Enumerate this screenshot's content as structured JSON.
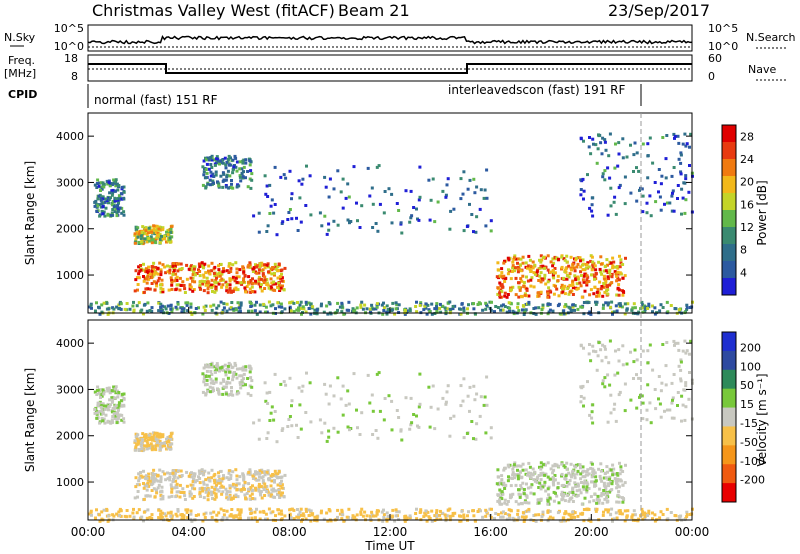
{
  "header": {
    "title": "Christmas Valley West (fitACF)",
    "beam": "Beam 21",
    "date": "23/Sep/2017"
  },
  "panels": {
    "nsky": {
      "label": "N.Sky",
      "right_label": "N.Search",
      "ticks_left": [
        "10^5",
        "10^0"
      ],
      "ticks_right": [
        "10^5",
        "10^0"
      ]
    },
    "freq": {
      "label_1": "Freq.",
      "label_2": "[MHz]",
      "right_label": "Nave",
      "ticks_left": [
        "18",
        "8"
      ],
      "ticks_right": [
        "60",
        "0"
      ]
    },
    "cpid": {
      "label": "CPID",
      "programs": [
        {
          "name": "normal (fast) 151 RF",
          "start_hour": 0
        },
        {
          "name": "interleavedscon (fast) 191 RF",
          "start_hour": 15,
          "end_hour": 21.8
        }
      ]
    }
  },
  "axes": {
    "xlabel": "Time UT",
    "x_ticks": [
      "00:00",
      "04:00",
      "08:00",
      "12:00",
      "16:00",
      "20:00",
      "00:00"
    ],
    "ylabel": "Slant Range [km]",
    "y_ticks": [
      "1000",
      "2000",
      "3000",
      "4000"
    ]
  },
  "colorbars": {
    "power": {
      "label": "Power [dB]",
      "ticks": [
        "28",
        "24",
        "20",
        "16",
        "12",
        "8",
        "4"
      ]
    },
    "velocity": {
      "label": "Velocity [m s⁻¹]",
      "ticks": [
        "200",
        "100",
        "50",
        "15",
        "-15",
        "-50",
        "-100",
        "-200"
      ]
    }
  },
  "colors": {
    "power_scale": [
      "#1f1fd6",
      "#2c5aa0",
      "#2f6e8a",
      "#3a8a70",
      "#62b84a",
      "#c4d428",
      "#f2b81a",
      "#f07a10",
      "#e83a10",
      "#e00000"
    ],
    "velocity_scale": [
      "#e80000",
      "#f05a10",
      "#f5961a",
      "#f7c048",
      "#c8c8c0",
      "#78c83a",
      "#2e8a5a",
      "#2e4aa0",
      "#1f2fd0"
    ]
  },
  "chart_data": {
    "type": "heatmap",
    "title": "Christmas Valley West (fitACF)",
    "subtitle": "Beam 21",
    "date": "23/Sep/2017",
    "xlabel": "Time UT",
    "ylabel": "Slant Range [km]",
    "xlim_hours": [
      0,
      24
    ],
    "ylim_km": [
      180,
      4500
    ],
    "power_range_db": [
      0,
      30
    ],
    "velocity_range_ms": [
      -250,
      250
    ],
    "features": [
      {
        "name": "early-cluster",
        "t": [
          0.2,
          1.4
        ],
        "r": [
          2300,
          3100
        ],
        "power_db": 8,
        "velocity_ms": 5
      },
      {
        "name": "mid-cluster",
        "t": [
          1.8,
          3.3
        ],
        "r": [
          1700,
          2100
        ],
        "power_db": 16,
        "velocity_ms": -20
      },
      {
        "name": "main-echo",
        "t": [
          1.8,
          7.8
        ],
        "r": [
          650,
          1300
        ],
        "power_db": 22,
        "velocity_ms": -10
      },
      {
        "name": "upper-sparse",
        "t": [
          4.5,
          6.5
        ],
        "r": [
          2900,
          3600
        ],
        "power_db": 8,
        "velocity_ms": 5
      },
      {
        "name": "sparse-band",
        "t": [
          6.5,
          16.0
        ],
        "r": [
          1900,
          3400
        ],
        "power_db": 6,
        "velocity_ms": 5
      },
      {
        "name": "evening-echo",
        "t": [
          16.2,
          21.3
        ],
        "r": [
          550,
          1450
        ],
        "power_db": 22,
        "velocity_ms": 5
      },
      {
        "name": "late-streak",
        "t": [
          19.5,
          24.0
        ],
        "r": [
          2300,
          4100
        ],
        "power_db": 6,
        "velocity_ms": 5
      },
      {
        "name": "ground-scatter-floor",
        "t": [
          0.0,
          24.0
        ],
        "r": [
          180,
          450
        ],
        "power_db": 10,
        "velocity_ms": -25
      }
    ]
  }
}
